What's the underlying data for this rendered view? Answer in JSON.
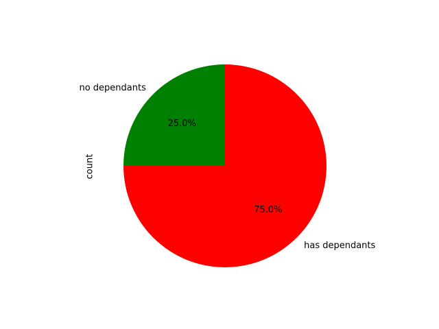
{
  "chart_data": {
    "type": "pie",
    "title": "",
    "ylabel": "count",
    "slices": [
      {
        "label": "no dependants",
        "value": 25.0,
        "pct_label": "25.0%",
        "color": "#008000"
      },
      {
        "label": "has dependants",
        "value": 75.0,
        "pct_label": "75.0%",
        "color": "#ff0000"
      }
    ],
    "start_angle_deg": 90,
    "direction": "counterclockwise",
    "legend": "none"
  }
}
